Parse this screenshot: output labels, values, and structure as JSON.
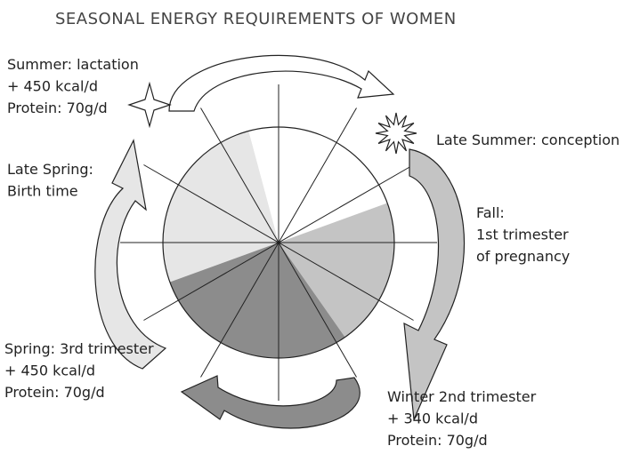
{
  "title": "SEASONAL ENERGY REQUIREMENTS OF WOMEN",
  "labels": [
    {
      "lines": [
        "Summer: lactation",
        "+ 450 kcal/d",
        "Protein: 70g/d"
      ]
    },
    {
      "lines": [
        "Late Summer: conception"
      ]
    },
    {
      "lines": [
        "Late Spring:",
        "Birth  time"
      ]
    },
    {
      "lines": [
        "Fall:",
        "1st trimester",
        "of pregnancy"
      ]
    },
    {
      "lines": [
        "Spring: 3rd trimester",
        "+ 450 kcal/d",
        "Protein: 70g/d"
      ]
    },
    {
      "lines": [
        "Winter 2nd trimester",
        "+ 340 kcal/d",
        "Protein: 70g/d"
      ]
    }
  ]
}
